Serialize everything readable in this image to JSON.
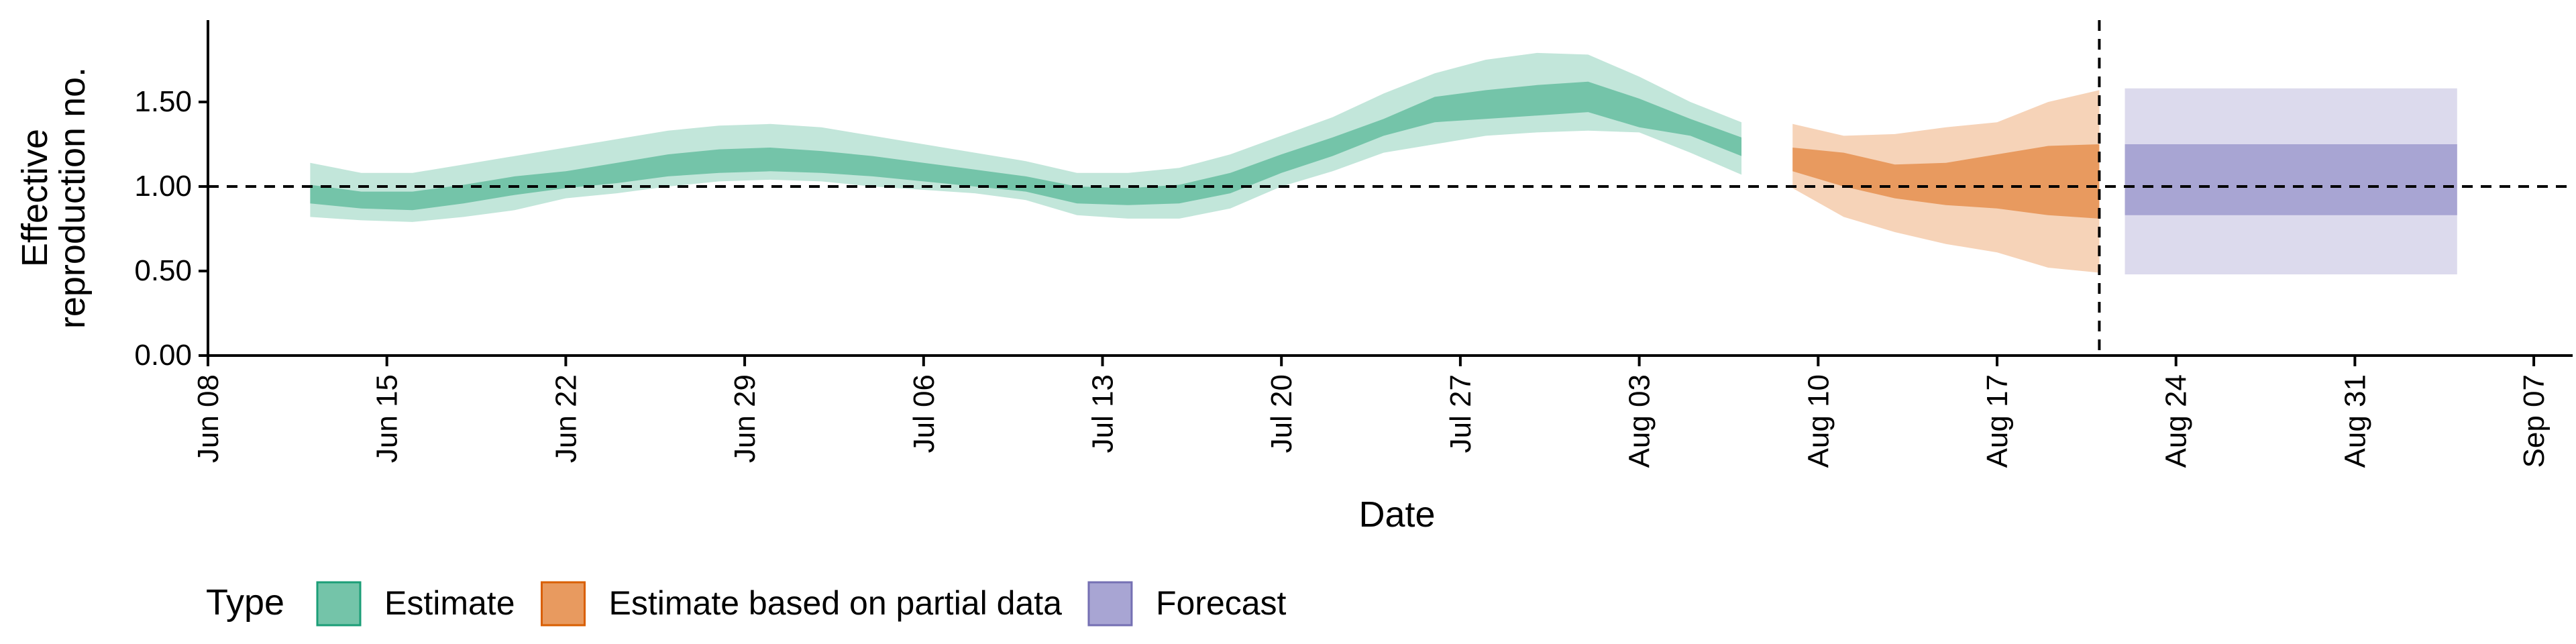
{
  "chart_data": {
    "type": "area",
    "title": "",
    "xlabel": "Date",
    "ylabel": "Effective reproduction no.",
    "ylabel_lines": [
      "Effective",
      "reproduction no."
    ],
    "x_ticks": [
      "Jun 08",
      "Jun 15",
      "Jun 22",
      "Jun 29",
      "Jul 06",
      "Jul 13",
      "Jul 20",
      "Jul 27",
      "Aug 03",
      "Aug 10",
      "Aug 17",
      "Aug 24",
      "Aug 31",
      "Sep 07"
    ],
    "y_ticks": [
      "0.00",
      "0.50",
      "1.00",
      "1.50"
    ],
    "xlim": [
      "2020-06-08",
      "2020-09-08"
    ],
    "ylim": [
      0,
      1.9
    ],
    "reference_hline": 1.0,
    "reference_vline": "2020-08-21",
    "legend": {
      "title": "Type",
      "position": "bottom",
      "items": [
        {
          "label": "Estimate",
          "color": "#1b9e77"
        },
        {
          "label": "Estimate based on partial data",
          "color": "#d95f02"
        },
        {
          "label": "Forecast",
          "color": "#7570b3"
        }
      ]
    },
    "series": [
      {
        "type": "Estimate",
        "dark_color": "#74c4a9",
        "light_color": "#c2e6da",
        "x": [
          "2020-06-12",
          "2020-06-14",
          "2020-06-16",
          "2020-06-18",
          "2020-06-20",
          "2020-06-22",
          "2020-06-24",
          "2020-06-26",
          "2020-06-28",
          "2020-06-30",
          "2020-07-02",
          "2020-07-04",
          "2020-07-06",
          "2020-07-08",
          "2020-07-10",
          "2020-07-12",
          "2020-07-14",
          "2020-07-16",
          "2020-07-18",
          "2020-07-20",
          "2020-07-22",
          "2020-07-24",
          "2020-07-26",
          "2020-07-28",
          "2020-07-30",
          "2020-08-01",
          "2020-08-03",
          "2020-08-05",
          "2020-08-07"
        ],
        "lower90": [
          0.82,
          0.8,
          0.79,
          0.82,
          0.86,
          0.93,
          0.96,
          1.0,
          1.03,
          1.04,
          1.03,
          1.0,
          0.98,
          0.96,
          0.92,
          0.83,
          0.81,
          0.81,
          0.87,
          1.0,
          1.09,
          1.2,
          1.25,
          1.3,
          1.32,
          1.33,
          1.32,
          1.2,
          1.07
        ],
        "lower50": [
          0.9,
          0.87,
          0.86,
          0.9,
          0.95,
          0.99,
          1.02,
          1.06,
          1.08,
          1.09,
          1.08,
          1.06,
          1.03,
          1.0,
          0.97,
          0.9,
          0.89,
          0.9,
          0.96,
          1.08,
          1.18,
          1.3,
          1.38,
          1.4,
          1.42,
          1.44,
          1.35,
          1.3,
          1.18
        ],
        "upper50": [
          1.01,
          0.97,
          0.97,
          1.01,
          1.06,
          1.09,
          1.14,
          1.19,
          1.22,
          1.23,
          1.21,
          1.18,
          1.14,
          1.1,
          1.06,
          1.0,
          0.99,
          1.01,
          1.08,
          1.19,
          1.29,
          1.4,
          1.53,
          1.57,
          1.6,
          1.62,
          1.52,
          1.4,
          1.29
        ],
        "upper90": [
          1.14,
          1.08,
          1.08,
          1.13,
          1.18,
          1.23,
          1.28,
          1.33,
          1.36,
          1.37,
          1.35,
          1.3,
          1.25,
          1.2,
          1.15,
          1.08,
          1.08,
          1.11,
          1.19,
          1.3,
          1.41,
          1.55,
          1.67,
          1.75,
          1.79,
          1.78,
          1.65,
          1.5,
          1.38
        ]
      },
      {
        "type": "Estimate based on partial data",
        "dark_color": "#e89a5f",
        "light_color": "#f6d3b8",
        "x": [
          "2020-08-09",
          "2020-08-11",
          "2020-08-13",
          "2020-08-15",
          "2020-08-17",
          "2020-08-19",
          "2020-08-21"
        ],
        "lower90": [
          0.99,
          0.82,
          0.73,
          0.66,
          0.61,
          0.52,
          0.49
        ],
        "lower50": [
          1.09,
          1.0,
          0.93,
          0.89,
          0.87,
          0.83,
          0.81
        ],
        "upper50": [
          1.23,
          1.2,
          1.13,
          1.14,
          1.19,
          1.24,
          1.25
        ],
        "upper90": [
          1.37,
          1.3,
          1.31,
          1.35,
          1.38,
          1.5,
          1.57
        ]
      },
      {
        "type": "Forecast",
        "dark_color": "#a8a5d3",
        "light_color": "#dcdaed",
        "x": [
          "2020-08-22",
          "2020-09-04"
        ],
        "lower90": [
          0.48,
          0.48
        ],
        "lower50": [
          0.83,
          0.83
        ],
        "upper50": [
          1.25,
          1.25
        ],
        "upper90": [
          1.58,
          1.58
        ]
      }
    ]
  }
}
